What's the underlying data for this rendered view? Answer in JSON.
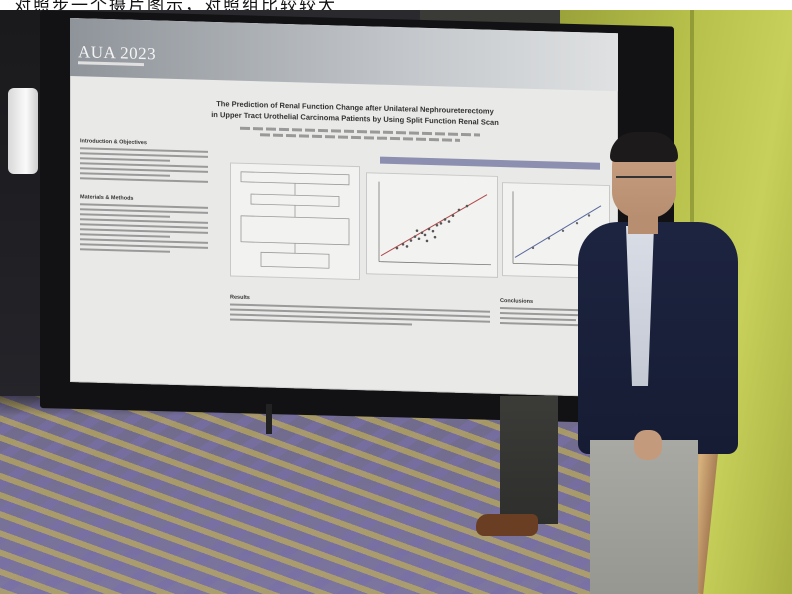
{
  "caption": {
    "text": "对照步一个摄片图示，对照组比较较大"
  },
  "poster": {
    "logo": "AUA 2023",
    "title_line1": "The Prediction of Renal Function Change after Unilateral Nephroureterectomy",
    "title_line2": "in Upper Tract Urothelial Carcinoma Patients by Using Split Function Renal Scan",
    "section_intro": "Introduction & Objectives",
    "section_methods": "Materials & Methods",
    "section_results": "Results",
    "section_conclusions": "Conclusions"
  },
  "colors": {
    "poster_bg": "#e9e9e7",
    "board": "#121214",
    "wall_green": "#b6c04a",
    "jacket": "#1d2440",
    "carpet_purple": "#7c76a0",
    "carpet_yellow": "#d2be46"
  }
}
